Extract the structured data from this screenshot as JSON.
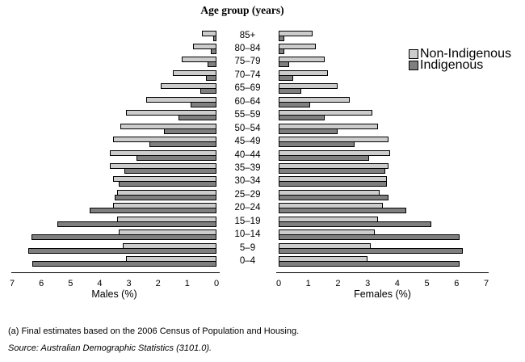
{
  "title": "Age group (years)",
  "legend": [
    {
      "label": "Non-Indigenous",
      "color": "#cccccc"
    },
    {
      "label": "Indigenous",
      "color": "#7f7f7f"
    }
  ],
  "axes": {
    "male_label": "Males (%)",
    "female_label": "Females (%)",
    "male_ticks": [
      7,
      6,
      5,
      4,
      3,
      2,
      1,
      0
    ],
    "female_ticks": [
      0,
      1,
      2,
      3,
      4,
      5,
      6,
      7
    ],
    "max_percent": 7
  },
  "footnote": "(a) Final estimates based on the 2006 Census of Population and Housing.",
  "source": "Source: Australian Demographic Statistics (3101.0).",
  "chart_data": {
    "type": "bar",
    "subtype": "population-pyramid",
    "title": "Age group (years)",
    "xlabel_left": "Males (%)",
    "xlabel_right": "Females (%)",
    "xlim_each_side": [
      0,
      7
    ],
    "grid": false,
    "legend_position": "right",
    "categories": [
      "85+",
      "80–84",
      "75–79",
      "70–74",
      "65–69",
      "60–64",
      "55–59",
      "50–54",
      "45–49",
      "40–44",
      "35–39",
      "30–34",
      "25–29",
      "20–24",
      "15–19",
      "10–14",
      "5–9",
      "0–4"
    ],
    "series": [
      {
        "name": "Non-Indigenous",
        "side": "male",
        "color": "#cccccc",
        "values": [
          0.5,
          0.8,
          1.2,
          1.5,
          1.9,
          2.4,
          3.1,
          3.3,
          3.55,
          3.65,
          3.65,
          3.55,
          3.4,
          3.55,
          3.4,
          3.35,
          3.2,
          3.1
        ]
      },
      {
        "name": "Indigenous",
        "side": "male",
        "color": "#7f7f7f",
        "values": [
          0.1,
          0.2,
          0.3,
          0.35,
          0.55,
          0.9,
          1.3,
          1.8,
          2.3,
          2.75,
          3.15,
          3.35,
          3.5,
          4.35,
          5.45,
          6.35,
          6.45,
          6.3
        ]
      },
      {
        "name": "Non-Indigenous",
        "side": "female",
        "color": "#cccccc",
        "values": [
          1.15,
          1.25,
          1.55,
          1.65,
          2.0,
          2.4,
          3.15,
          3.35,
          3.7,
          3.75,
          3.7,
          3.65,
          3.4,
          3.5,
          3.35,
          3.25,
          3.1,
          3.0
        ]
      },
      {
        "name": "Indigenous",
        "side": "female",
        "color": "#7f7f7f",
        "values": [
          0.2,
          0.2,
          0.35,
          0.5,
          0.75,
          1.05,
          1.55,
          2.0,
          2.55,
          3.05,
          3.6,
          3.65,
          3.7,
          4.3,
          5.15,
          6.1,
          6.2,
          6.1
        ]
      }
    ]
  }
}
